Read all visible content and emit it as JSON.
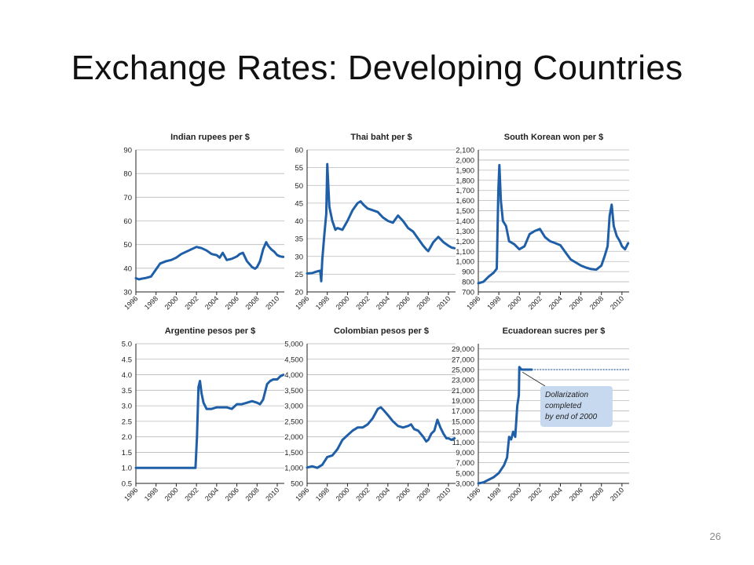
{
  "slide": {
    "title": "Exchange Rates: Developing Countries",
    "page_number": "26"
  },
  "colors": {
    "line": "#1f5fa8",
    "grid": "#b9b9b9",
    "axis": "#222222",
    "annotation_fill": "#c7d9ef"
  },
  "chart_data": [
    {
      "type": "line",
      "title": "Indian rupees per $",
      "ylim": [
        30,
        90
      ],
      "yticks": [
        "30",
        "40",
        "50",
        "60",
        "70",
        "80",
        "90"
      ],
      "xticks": [
        "1996",
        "1998",
        "2000",
        "2002",
        "2004",
        "2006",
        "2008",
        "2010"
      ],
      "xlim": [
        1996,
        2010.7
      ],
      "series": [
        {
          "x": [
            1996,
            1996.3,
            1996.6,
            1997,
            1997.5,
            1998,
            1998.4,
            1998.7,
            1999,
            1999.5,
            2000,
            2000.5,
            2001,
            2001.5,
            2002,
            2002.5,
            2003,
            2003.5,
            2004,
            2004.3,
            2004.6,
            2005,
            2005.5,
            2006,
            2006.3,
            2006.6,
            2007,
            2007.5,
            2007.8,
            2008,
            2008.3,
            2008.6,
            2008.9,
            2009.1,
            2009.4,
            2009.7,
            2010,
            2010.3,
            2010.6
          ],
          "y": [
            35.8,
            35.3,
            35.6,
            35.9,
            36.5,
            39.5,
            42,
            42.5,
            43,
            43.5,
            44.5,
            46,
            47,
            48,
            49,
            48.5,
            47.5,
            46,
            45.5,
            44.5,
            46.5,
            43.5,
            44,
            45,
            46,
            46.5,
            43,
            40.5,
            39.8,
            40.5,
            43,
            48,
            51,
            49.5,
            48,
            47,
            45.5,
            45,
            44.8
          ]
        }
      ]
    },
    {
      "type": "line",
      "title": "Thai baht per $",
      "ylim": [
        20,
        60
      ],
      "yticks": [
        "20",
        "25",
        "30",
        "35",
        "40",
        "45",
        "50",
        "55",
        "60"
      ],
      "xticks": [
        "1996",
        "1998",
        "2000",
        "2002",
        "2004",
        "2006",
        "2008",
        "2010"
      ],
      "xlim": [
        1996,
        2010.7
      ],
      "series": [
        {
          "x": [
            1996,
            1996.5,
            1997,
            1997.3,
            1997.4,
            1997.5,
            1997.7,
            1997.9,
            1998,
            1998.2,
            1998.5,
            1998.8,
            1999,
            1999.5,
            2000,
            2000.5,
            2001,
            2001.3,
            2001.6,
            2002,
            2002.5,
            2003,
            2003.5,
            2004,
            2004.5,
            2005,
            2005.5,
            2006,
            2006.5,
            2007,
            2007.5,
            2007.8,
            2008,
            2008.5,
            2009,
            2009.5,
            2010,
            2010.3,
            2010.6
          ],
          "y": [
            25.2,
            25.3,
            25.8,
            26,
            23,
            29,
            36,
            42,
            56,
            44,
            40,
            37.5,
            38,
            37.5,
            40,
            43,
            45,
            45.5,
            44.5,
            43.5,
            43,
            42.5,
            41,
            40,
            39.5,
            41.5,
            40,
            38,
            37,
            35,
            33,
            32,
            31.5,
            34,
            35.5,
            34,
            33,
            32.5,
            32.3
          ]
        }
      ]
    },
    {
      "type": "line",
      "title": "South Korean won per $",
      "ylim": [
        700,
        2100
      ],
      "yticks": [
        "700",
        "800",
        "900",
        "1,000",
        "1,100",
        "1,200",
        "1,300",
        "1,400",
        "1,500",
        "1,600",
        "1,700",
        "1,800",
        "1,900",
        "2,000",
        "2,100"
      ],
      "xticks": [
        "1996",
        "1998",
        "2000",
        "2002",
        "2004",
        "2006",
        "2008",
        "2010"
      ],
      "xlim": [
        1996,
        2010.7
      ],
      "series": [
        {
          "x": [
            1996,
            1996.5,
            1997,
            1997.5,
            1997.8,
            1997.95,
            1998.05,
            1998.2,
            1998.4,
            1998.7,
            1999,
            1999.5,
            2000,
            2000.5,
            2001,
            2001.5,
            2002,
            2002.5,
            2003,
            2003.5,
            2004,
            2004.5,
            2005,
            2005.5,
            2006,
            2006.5,
            2007,
            2007.5,
            2008,
            2008.3,
            2008.6,
            2008.8,
            2009,
            2009.2,
            2009.5,
            2009.8,
            2010,
            2010.3,
            2010.6
          ],
          "y": [
            785,
            800,
            850,
            890,
            930,
            1700,
            1950,
            1600,
            1400,
            1350,
            1200,
            1170,
            1120,
            1150,
            1270,
            1300,
            1320,
            1240,
            1200,
            1180,
            1160,
            1090,
            1020,
            990,
            960,
            940,
            925,
            920,
            960,
            1050,
            1150,
            1450,
            1560,
            1350,
            1250,
            1200,
            1150,
            1120,
            1180
          ]
        }
      ]
    },
    {
      "type": "line",
      "title": "Argentine pesos per $",
      "ylim": [
        0.5,
        5.0
      ],
      "yticks": [
        "0.5",
        "1.0",
        "1.5",
        "2.0",
        "2.5",
        "3.0",
        "3.5",
        "4.0",
        "4.5",
        "5.0"
      ],
      "xticks": [
        "1996",
        "1998",
        "2000",
        "2002",
        "2004",
        "2006",
        "2008",
        "2010"
      ],
      "xlim": [
        1996,
        2010.7
      ],
      "series": [
        {
          "x": [
            1996,
            1998,
            2000,
            2001.9,
            2002.05,
            2002.2,
            2002.35,
            2002.5,
            2002.7,
            2003,
            2003.5,
            2004,
            2004.5,
            2005,
            2005.5,
            2006,
            2006.5,
            2007,
            2007.5,
            2008,
            2008.3,
            2008.6,
            2009,
            2009.3,
            2009.6,
            2010,
            2010.3,
            2010.6
          ],
          "y": [
            1.0,
            1.0,
            1.0,
            1.0,
            2.0,
            3.6,
            3.8,
            3.4,
            3.1,
            2.9,
            2.9,
            2.95,
            2.95,
            2.95,
            2.9,
            3.05,
            3.05,
            3.1,
            3.15,
            3.1,
            3.05,
            3.2,
            3.7,
            3.8,
            3.85,
            3.85,
            3.95,
            4.0
          ]
        }
      ]
    },
    {
      "type": "line",
      "title": "Colombian pesos per $",
      "ylim": [
        500,
        5000
      ],
      "yticks": [
        "500",
        "1,000",
        "1,500",
        "2,000",
        "2,500",
        "3,000",
        "3,500",
        "4,000",
        "4,500",
        "5,000"
      ],
      "xticks": [
        "1996",
        "1998",
        "2000",
        "2002",
        "2004",
        "2006",
        "2008",
        "2010"
      ],
      "xlim": [
        1996,
        2010.7
      ],
      "series": [
        {
          "x": [
            1996,
            1996.5,
            1997,
            1997.5,
            1998,
            1998.5,
            1999,
            1999.5,
            2000,
            2000.5,
            2001,
            2001.5,
            2002,
            2002.5,
            2003,
            2003.3,
            2003.6,
            2004,
            2004.5,
            2005,
            2005.5,
            2006,
            2006.3,
            2006.6,
            2007,
            2007.5,
            2007.8,
            2008,
            2008.3,
            2008.6,
            2008.9,
            2009.2,
            2009.5,
            2009.8,
            2010,
            2010.3,
            2010.6
          ],
          "y": [
            1010,
            1050,
            1000,
            1100,
            1350,
            1400,
            1600,
            1900,
            2050,
            2200,
            2300,
            2300,
            2400,
            2600,
            2900,
            2950,
            2850,
            2700,
            2500,
            2350,
            2300,
            2350,
            2400,
            2250,
            2200,
            2000,
            1850,
            1900,
            2100,
            2200,
            2550,
            2300,
            2100,
            1950,
            1950,
            1900,
            1950
          ]
        }
      ]
    },
    {
      "type": "line",
      "title": "Ecuadorean sucres per $",
      "ylim": [
        3000,
        30000
      ],
      "yticks": [
        "3,000",
        "5,000",
        "7,000",
        "9,000",
        "11,000",
        "13,000",
        "15,000",
        "17,000",
        "19,000",
        "21,000",
        "23,000",
        "25,000",
        "27,000",
        "29,000"
      ],
      "xticks": [
        "1996",
        "1998",
        "2000",
        "2002",
        "2004",
        "2006",
        "2008",
        "2010"
      ],
      "xlim": [
        1996,
        2010.7
      ],
      "series": [
        {
          "x": [
            1996,
            1996.5,
            1997,
            1997.5,
            1998,
            1998.5,
            1998.8,
            1999,
            1999.2,
            1999.4,
            1999.6,
            1999.8,
            1999.95,
            2000,
            2000.2,
            2000.5,
            2001,
            2001.2
          ],
          "y": [
            3000,
            3200,
            3700,
            4200,
            5000,
            6500,
            8000,
            12000,
            11500,
            13000,
            12000,
            18000,
            20000,
            25500,
            25000,
            25000,
            25000,
            25000
          ]
        }
      ],
      "reference_line": {
        "y": 25000,
        "x_from": 2001.2,
        "x_to": 2010.7,
        "style": "dotted"
      },
      "annotation": {
        "lines": [
          "Dollarization",
          "completed",
          "by end of 2000"
        ]
      }
    }
  ]
}
